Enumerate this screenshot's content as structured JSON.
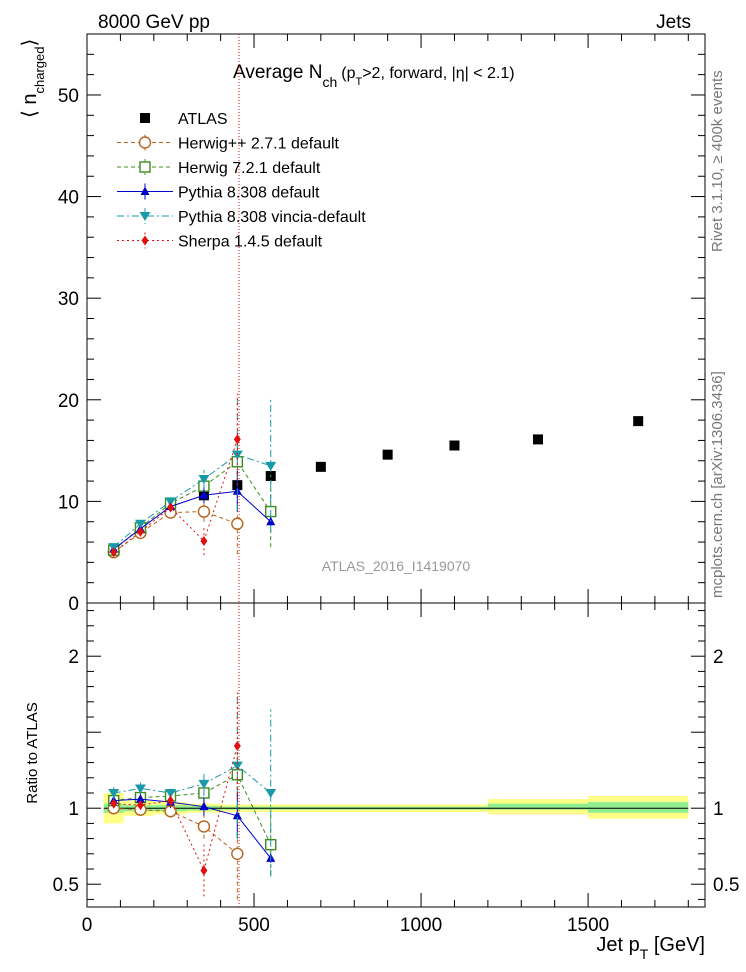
{
  "header": {
    "left": "8000 GeV pp",
    "right": "Jets"
  },
  "plot_title": {
    "main": "Average N",
    "sub": "ch",
    "rest_a": "(p",
    "rest_sub": "T",
    "rest_b": ">2, forward, |η| < 2.1)"
  },
  "ylabel_main": {
    "open": "⟨ n",
    "sub": "charged",
    "close": "⟩"
  },
  "ylabel_ratio": "Ratio to ATLAS",
  "xlabel": {
    "main": "Jet p",
    "sub": "T",
    "unit": "[GeV]"
  },
  "side_labels": {
    "rivet": "Rivet 3.1.10, ≥ 400k events",
    "mcplots": "mcplots.cern.ch [arXiv:1306.3436]"
  },
  "watermark": "ATLAS_2016_I1419070",
  "colors": {
    "atlas": "#000000",
    "herwigpp": "#b5651d",
    "herwig7": "#3c8c1e",
    "pythia": "#0000cc",
    "vincia": "#1a9aa8",
    "sherpa": "#e01010",
    "band_inner": "#90ee90",
    "band_outer": "#ffff88"
  },
  "chart_data": [
    {
      "type": "scatter",
      "panel": "main",
      "xlim": [
        0,
        1850
      ],
      "ylim": [
        0,
        56
      ],
      "yticks": [
        0,
        10,
        20,
        30,
        40,
        50
      ],
      "legend_position": "top-left",
      "series": [
        {
          "name": "ATLAS",
          "marker": "square",
          "x": [
            80,
            160,
            250,
            350,
            450,
            550,
            700,
            900,
            1100,
            1350,
            1650
          ],
          "y": [
            5.1,
            7.0,
            9.1,
            10.6,
            11.6,
            12.5,
            13.4,
            14.6,
            15.5,
            16.1,
            17.9
          ]
        },
        {
          "name": "Herwig++ 2.7.1 default",
          "marker": "open-circle",
          "line": "dashed",
          "x": [
            80,
            160,
            250,
            350,
            450
          ],
          "y": [
            5.0,
            6.9,
            8.9,
            9.0,
            7.8
          ],
          "err": [
            0.2,
            0.3,
            0.4,
            1.0,
            3.0
          ]
        },
        {
          "name": "Herwig 7.2.1 default",
          "marker": "open-square",
          "line": "dashed",
          "x": [
            80,
            160,
            250,
            350,
            450,
            550
          ],
          "y": [
            5.2,
            7.4,
            9.8,
            11.5,
            13.9,
            9.0
          ],
          "err": [
            0.2,
            0.3,
            0.4,
            0.8,
            2.0,
            3.5
          ]
        },
        {
          "name": "Pythia 8.308 default",
          "marker": "triangle-up",
          "line": "solid",
          "x": [
            80,
            160,
            250,
            350,
            450,
            550
          ],
          "y": [
            5.3,
            7.3,
            9.5,
            10.6,
            11.0,
            8.0
          ],
          "err": [
            0.2,
            0.3,
            0.4,
            0.8,
            2.0,
            0.4
          ]
        },
        {
          "name": "Pythia 8.308 vincia-default",
          "marker": "triangle-down",
          "line": "dashdot",
          "x": [
            80,
            160,
            250,
            350,
            450,
            550
          ],
          "y": [
            5.5,
            7.8,
            10.0,
            12.2,
            14.6,
            13.5
          ],
          "err": [
            0.2,
            0.3,
            0.5,
            0.9,
            5.5,
            6.5
          ]
        },
        {
          "name": "Sherpa 1.4.5 default",
          "marker": "diamond",
          "line": "dotted",
          "x": [
            80,
            160,
            250,
            350,
            450
          ],
          "y": [
            5.0,
            7.0,
            9.4,
            6.1,
            16.1
          ],
          "err": [
            0.2,
            0.3,
            0.4,
            1.4,
            4.5
          ]
        }
      ]
    },
    {
      "type": "scatter",
      "panel": "ratio",
      "xlim": [
        0,
        1850
      ],
      "ylim": [
        0.35,
        2.35
      ],
      "yticks": [
        0.5,
        1,
        2
      ],
      "xticks": [
        0,
        500,
        1000,
        1500
      ],
      "bands": [
        {
          "x0": 50,
          "x1": 110,
          "inner": [
            0.97,
            1.03
          ],
          "outer": [
            0.9,
            1.1
          ]
        },
        {
          "x0": 110,
          "x1": 200,
          "inner": [
            0.98,
            1.02
          ],
          "outer": [
            0.95,
            1.05
          ]
        },
        {
          "x0": 200,
          "x1": 300,
          "inner": [
            0.98,
            1.02
          ],
          "outer": [
            0.96,
            1.04
          ]
        },
        {
          "x0": 300,
          "x1": 400,
          "inner": [
            0.985,
            1.015
          ],
          "outer": [
            0.97,
            1.03
          ]
        },
        {
          "x0": 400,
          "x1": 1200,
          "inner": [
            0.99,
            1.01
          ],
          "outer": [
            0.975,
            1.025
          ]
        },
        {
          "x0": 1200,
          "x1": 1500,
          "inner": [
            0.99,
            1.03
          ],
          "outer": [
            0.96,
            1.06
          ]
        },
        {
          "x0": 1500,
          "x1": 1800,
          "inner": [
            0.97,
            1.04
          ],
          "outer": [
            0.93,
            1.08
          ]
        }
      ],
      "series": [
        {
          "name": "Herwig++ 2.7.1 default",
          "x": [
            80,
            160,
            250,
            350,
            450
          ],
          "y": [
            1.0,
            0.99,
            0.98,
            0.88,
            0.7
          ],
          "err": [
            0.03,
            0.03,
            0.04,
            0.08,
            0.3
          ]
        },
        {
          "name": "Herwig 7.2.1 default",
          "x": [
            80,
            160,
            250,
            350,
            450,
            550
          ],
          "y": [
            1.05,
            1.07,
            1.08,
            1.1,
            1.22,
            0.76
          ],
          "err": [
            0.03,
            0.03,
            0.04,
            0.07,
            0.15,
            0.2
          ]
        },
        {
          "name": "Pythia 8.308 default",
          "x": [
            80,
            160,
            250,
            350,
            450,
            550
          ],
          "y": [
            1.05,
            1.06,
            1.04,
            1.01,
            0.95,
            0.67
          ],
          "err": [
            0.03,
            0.03,
            0.04,
            0.06,
            0.15,
            0.03
          ]
        },
        {
          "name": "Pythia 8.308 vincia-default",
          "x": [
            80,
            160,
            250,
            350,
            450,
            550
          ],
          "y": [
            1.1,
            1.13,
            1.1,
            1.16,
            1.28,
            1.1
          ],
          "err": [
            0.04,
            0.04,
            0.05,
            0.08,
            0.48,
            0.55
          ]
        },
        {
          "name": "Sherpa 1.4.5 default",
          "x": [
            80,
            160,
            250,
            350,
            450
          ],
          "y": [
            1.03,
            1.02,
            1.05,
            0.59,
            1.41
          ],
          "err": [
            0.03,
            0.03,
            0.04,
            0.17,
            0.35
          ]
        }
      ]
    }
  ]
}
